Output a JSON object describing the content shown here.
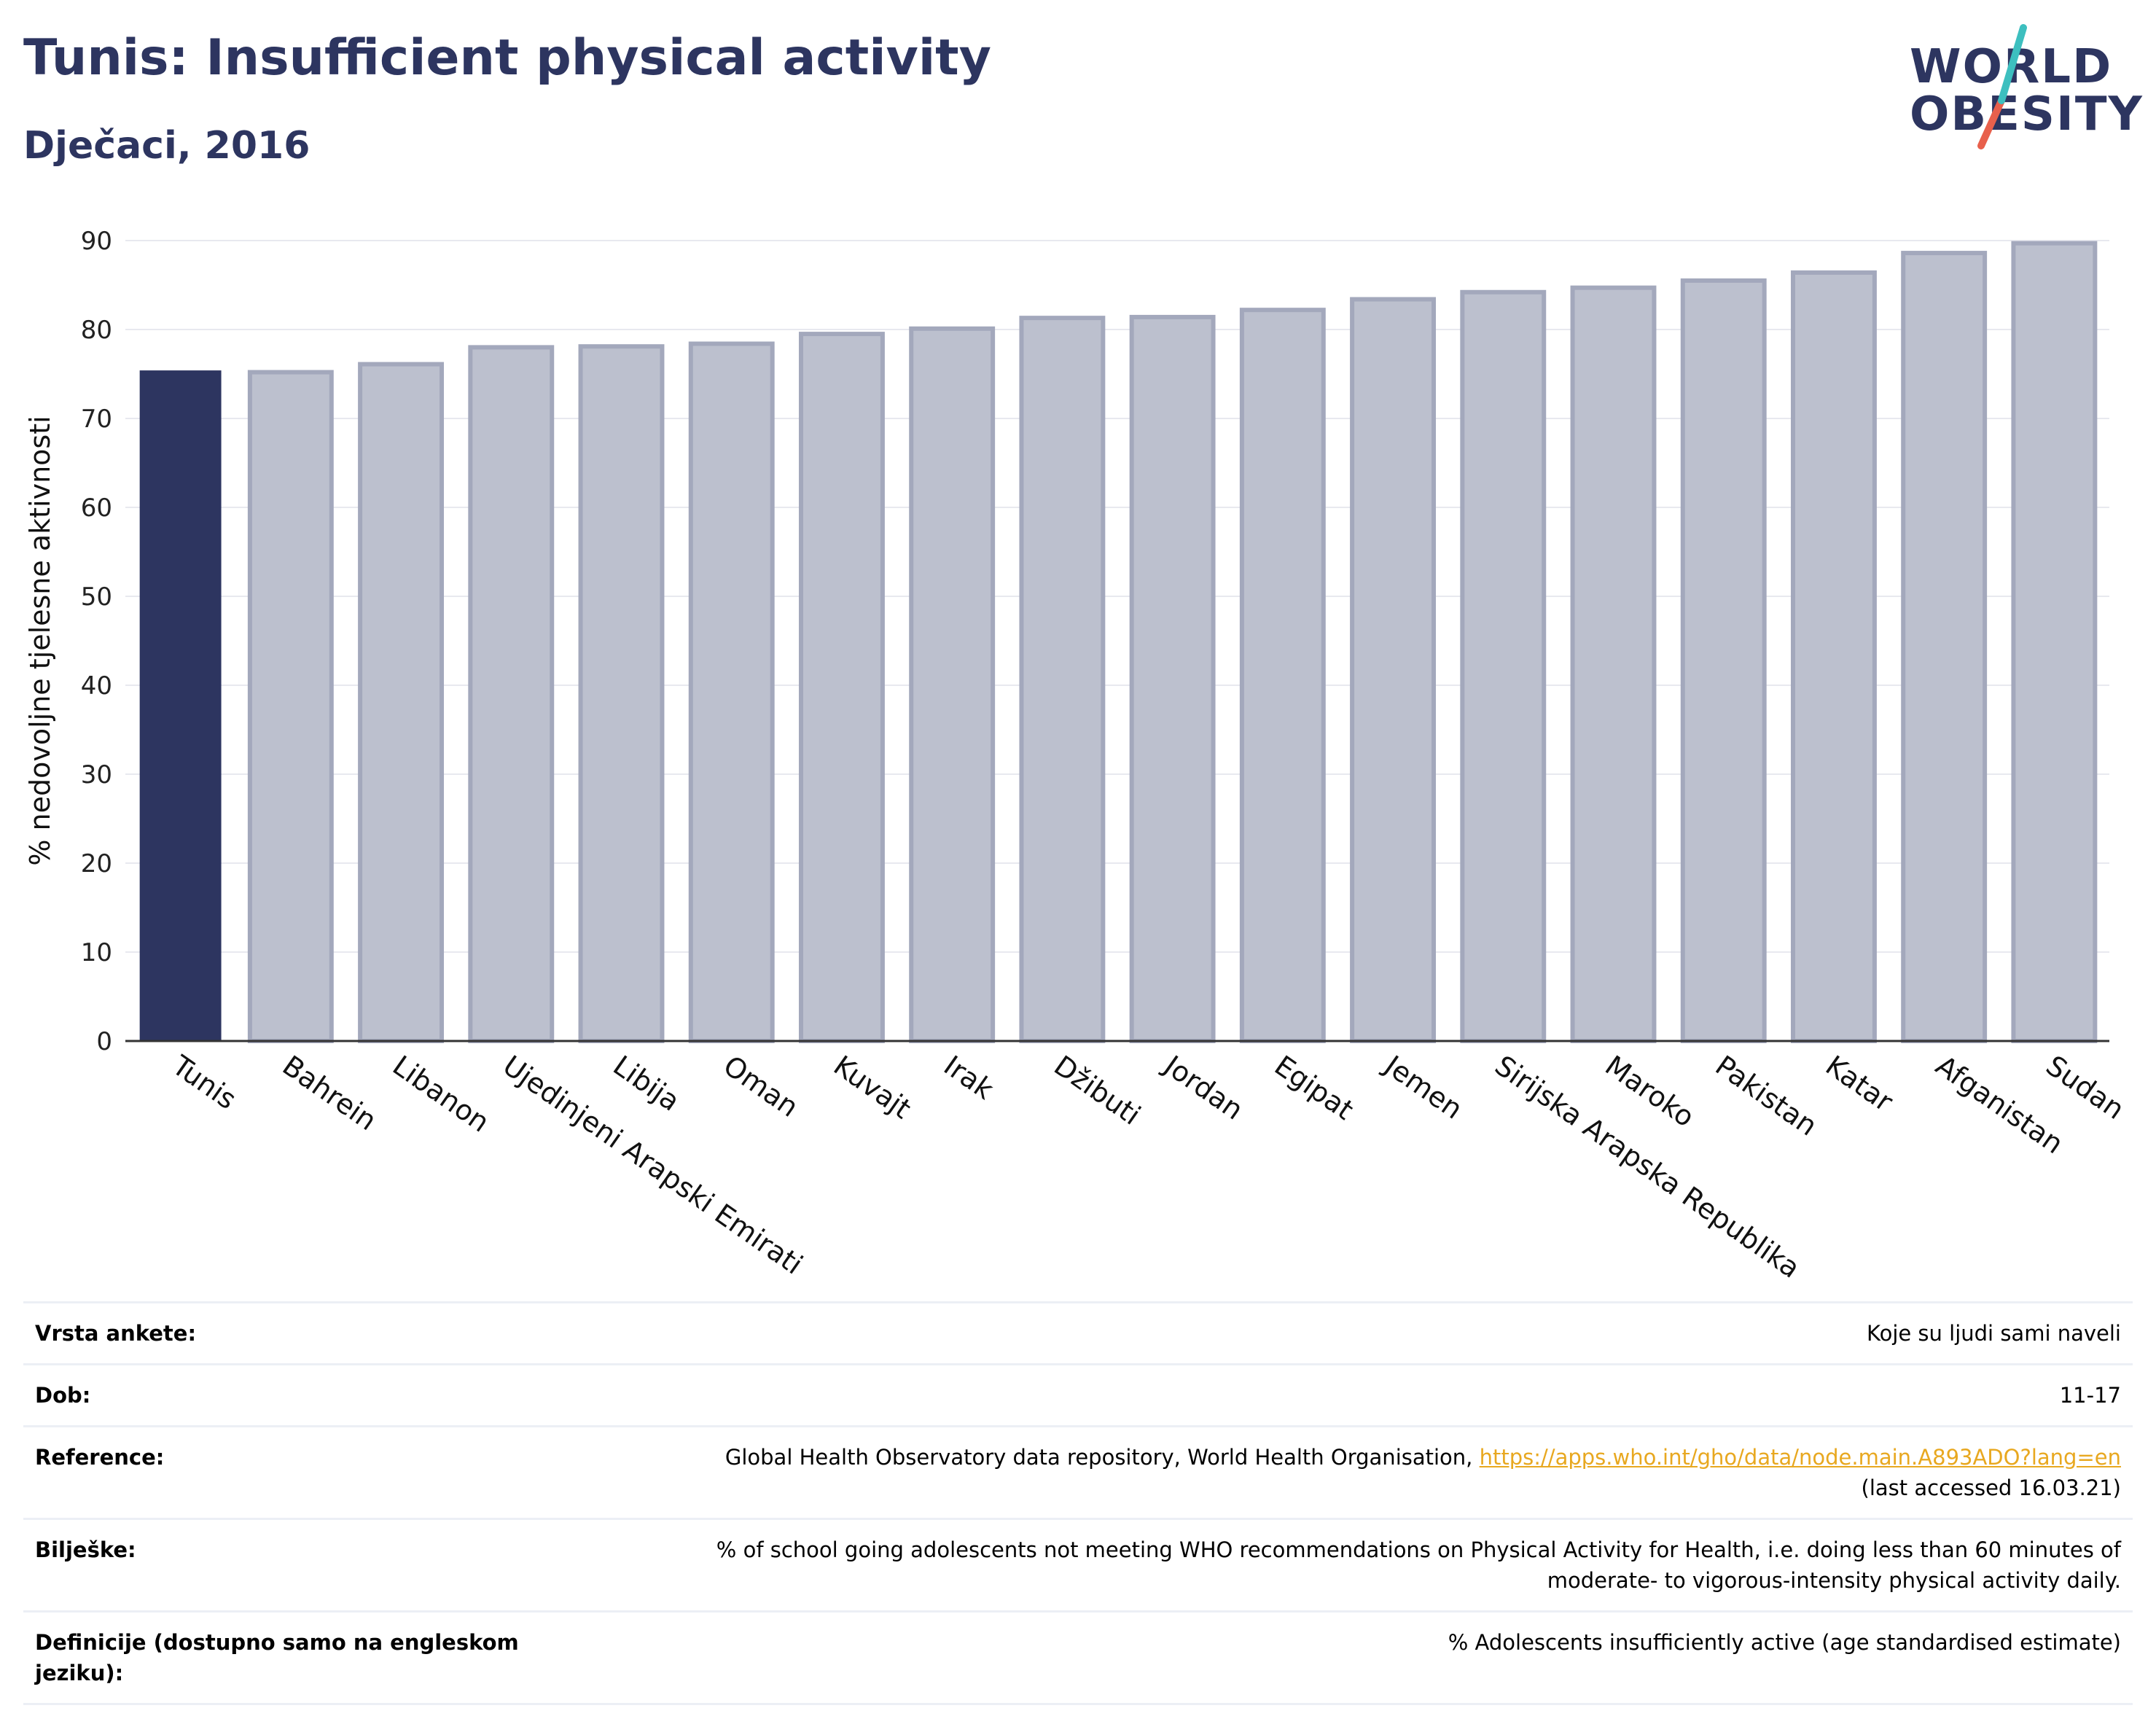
{
  "header": {
    "title": "Tunis: Insufficient physical activity",
    "subtitle": "Dječaci, 2016"
  },
  "logo": {
    "line1": "WORLD",
    "line2": "OBESITY",
    "accent_colors": [
      "#3dbfbf",
      "#e8604c"
    ]
  },
  "chart_data": {
    "type": "bar",
    "categories": [
      "Tunis",
      "Bahrein",
      "Libanon",
      "Ujedinjeni Arapski Emirati",
      "Libija",
      "Oman",
      "Kuvajt",
      "Irak",
      "Džibuti",
      "Jordan",
      "Egipat",
      "Jemen",
      "Sirijska Arapska Republika",
      "Maroko",
      "Pakistan",
      "Katar",
      "Afganistan",
      "Sudan"
    ],
    "values": [
      75.4,
      75.2,
      76.1,
      78.0,
      78.1,
      78.4,
      79.5,
      80.1,
      81.3,
      81.4,
      82.2,
      83.4,
      84.2,
      84.7,
      85.5,
      86.4,
      88.6,
      89.7
    ],
    "highlight_index": 0,
    "highlight_color": "#2d3560",
    "bar_color": "#bcc0ce",
    "bar_edge_color": "#a3a8bc",
    "ylabel": "% nedovoljne tjelesne aktivnosti",
    "ylim": [
      0,
      90
    ],
    "yticks": [
      0,
      10,
      20,
      30,
      40,
      50,
      60,
      70,
      80,
      90
    ],
    "grid": true
  },
  "info_table": [
    {
      "label": "Vrsta ankete:",
      "value": "Koje su ljudi sami naveli"
    },
    {
      "label": "Dob:",
      "value": "11-17"
    },
    {
      "label": "Reference:",
      "value": "Global Health Observatory data repository, World Health Organisation,",
      "link": "https://apps.who.int/gho/data/node.main.A893ADO?lang=en",
      "value2": "(last accessed 16.03.21)"
    },
    {
      "label": "Bilješke:",
      "value": "% of school going adolescents not meeting WHO recommendations on Physical Activity for Health, i.e. doing less than 60 minutes of moderate- to vigorous-intensity physical activity daily."
    },
    {
      "label": "Definicije (dostupno samo na engleskom jeziku):",
      "value": "% Adolescents insufficiently active (age standardised estimate)"
    }
  ]
}
